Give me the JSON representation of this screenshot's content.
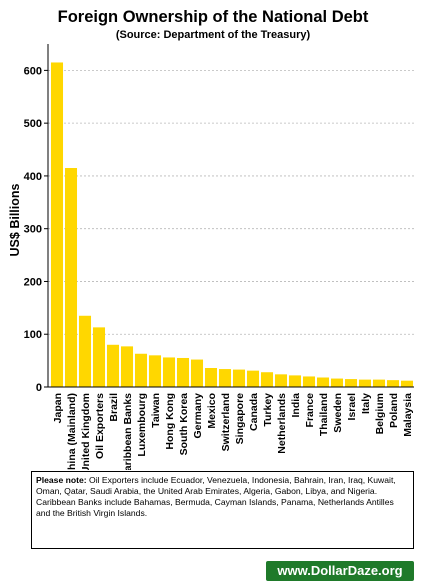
{
  "chart_data": {
    "type": "bar",
    "title": "Foreign Ownership of the National Debt",
    "subtitle": "(Source: Department of the Treasury)",
    "ylabel": "US$ Billions",
    "xlabel": "",
    "ylim": [
      0,
      650
    ],
    "yticks": [
      0,
      100,
      200,
      300,
      400,
      500,
      600
    ],
    "grid": true,
    "bar_color": "#ffd700",
    "categories": [
      "Japan",
      "China (Mainland)",
      "United Kingdom",
      "Oil Exporters",
      "Brazil",
      "Caribbean Banks",
      "Luxembourg",
      "Taiwan",
      "Hong Kong",
      "South Korea",
      "Germany",
      "Mexico",
      "Switzerland",
      "Singapore",
      "Canada",
      "Turkey",
      "Netherlands",
      "India",
      "France",
      "Thailand",
      "Sweden",
      "Israel",
      "Italy",
      "Belgium",
      "Poland",
      "Malaysia"
    ],
    "values": [
      615,
      415,
      135,
      113,
      80,
      77,
      63,
      60,
      56,
      55,
      52,
      36,
      34,
      33,
      31,
      28,
      24,
      22,
      20,
      18,
      16,
      15,
      14,
      14,
      13,
      12
    ]
  },
  "note": {
    "label": "Please note:",
    "text": " Oil Exporters include Ecuador, Venezuela, Indonesia, Bahrain, Iran, Iraq, Kuwait, Oman, Qatar, Saudi Arabia, the United Arab Emirates, Algeria, Gabon, Libya, and Nigeria. Caribbean Banks include Bahamas, Bermuda, Cayman Islands, Panama, Netherlands Antilles and the British Virgin Islands."
  },
  "site": {
    "label": "www.DollarDaze.org"
  }
}
